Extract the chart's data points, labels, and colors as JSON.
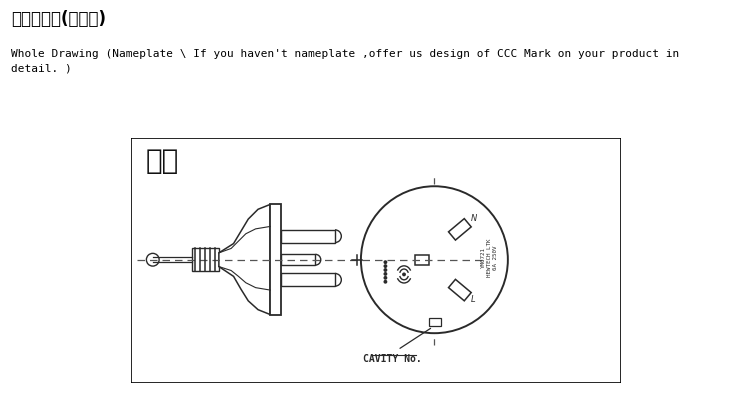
{
  "title_cn": "整体设计图(或铭牌)",
  "title_en": "Whole Drawing (Nameplate \\ If you haven't nameplate ,offer us design of CCC Mark on your product in\ndetail. )",
  "sample_label": "样图",
  "cavity_label": "CAVITY No.",
  "bg_color": "#ffffff",
  "border_color": "#000000",
  "line_color": "#2a2a2a",
  "dashed_color": "#555555"
}
